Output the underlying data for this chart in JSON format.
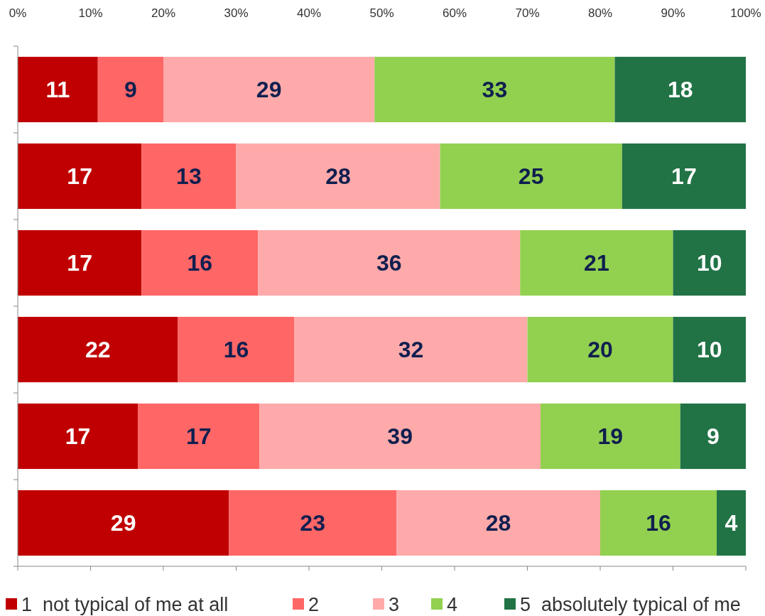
{
  "chart_data": {
    "type": "bar",
    "orientation": "horizontal",
    "stacked": true,
    "categories": [
      null,
      null,
      null,
      null,
      null,
      null
    ],
    "xlim": [
      0,
      100
    ],
    "xticks": [
      {
        "value": 0,
        "label": "0%"
      },
      {
        "value": 10,
        "label": "10%"
      },
      {
        "value": 20,
        "label": "20%"
      },
      {
        "value": 30,
        "label": "30%"
      },
      {
        "value": 40,
        "label": "40%"
      },
      {
        "value": 50,
        "label": "50%"
      },
      {
        "value": 60,
        "label": "60%"
      },
      {
        "value": 70,
        "label": "70%"
      },
      {
        "value": 80,
        "label": "80%"
      },
      {
        "value": 90,
        "label": "90%"
      },
      {
        "value": 100,
        "label": "100%"
      }
    ],
    "series": [
      {
        "name": "1  not typical of me at all",
        "color": "#c00000",
        "values": [
          11,
          17,
          17,
          22,
          16.5,
          29
        ],
        "value_labels": [
          "11",
          "17",
          "17",
          "22",
          "17",
          "29"
        ]
      },
      {
        "name": "2",
        "color": "#ff6666",
        "values": [
          9,
          13,
          16,
          16,
          16.7,
          23
        ],
        "value_labels": [
          "9",
          "13",
          "16",
          "16",
          "17",
          "23"
        ]
      },
      {
        "name": "3",
        "color": "#ffaaaa",
        "values": [
          29,
          28,
          36,
          32,
          38.6,
          28
        ],
        "value_labels": [
          "29",
          "28",
          "36",
          "32",
          "39",
          "28"
        ]
      },
      {
        "name": "4",
        "color": "#92d050",
        "values": [
          33,
          25,
          21,
          20,
          19.2,
          16
        ],
        "value_labels": [
          "33",
          "25",
          "21",
          "20",
          "19",
          "16"
        ]
      },
      {
        "name": "5  absolutely typical of me",
        "color": "#217346",
        "values": [
          18,
          17,
          10,
          10,
          9,
          4
        ],
        "value_labels": [
          "18",
          "17",
          "10",
          "10",
          "9",
          "4"
        ]
      }
    ],
    "grid": false,
    "legend": "bottom"
  }
}
